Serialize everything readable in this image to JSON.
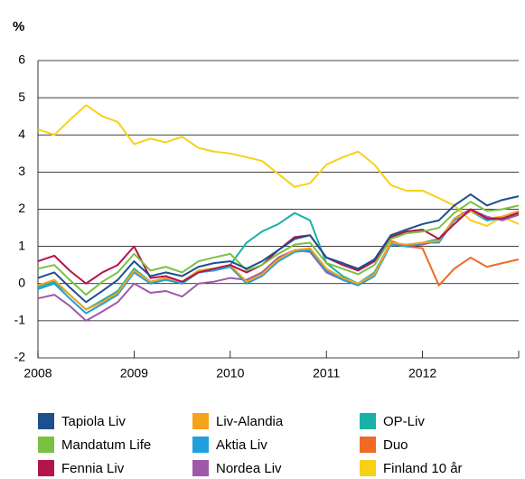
{
  "chart_data": {
    "type": "line",
    "y_label": "%",
    "x": [
      2008,
      2008.17,
      2008.33,
      2008.5,
      2008.67,
      2008.83,
      2009,
      2009.17,
      2009.33,
      2009.5,
      2009.67,
      2009.83,
      2010,
      2010.17,
      2010.33,
      2010.5,
      2010.67,
      2010.83,
      2011,
      2011.17,
      2011.33,
      2011.5,
      2011.67,
      2011.83,
      2012,
      2012.17,
      2012.33,
      2012.5,
      2012.67,
      2012.83,
      2013
    ],
    "series": [
      {
        "name": "Tapiola Liv",
        "color": "#1d4f91",
        "values": [
          0.15,
          0.3,
          -0.1,
          -0.5,
          -0.2,
          0.1,
          0.6,
          0.2,
          0.3,
          0.2,
          0.45,
          0.55,
          0.6,
          0.4,
          0.6,
          0.9,
          1.2,
          1.3,
          0.7,
          0.55,
          0.4,
          0.65,
          1.3,
          1.45,
          1.6,
          1.7,
          2.1,
          2.4,
          2.1,
          2.25,
          2.35
        ]
      },
      {
        "name": "Mandatum Life",
        "color": "#7ac143",
        "values": [
          0.4,
          0.5,
          0.1,
          -0.3,
          0.05,
          0.3,
          0.8,
          0.35,
          0.45,
          0.3,
          0.6,
          0.7,
          0.8,
          0.35,
          0.5,
          0.8,
          1.05,
          1.1,
          0.55,
          0.4,
          0.25,
          0.5,
          1.2,
          1.35,
          1.4,
          1.5,
          1.9,
          2.2,
          1.95,
          2.0,
          2.1
        ]
      },
      {
        "name": "Fennia Liv",
        "color": "#b5134b",
        "values": [
          0.6,
          0.75,
          0.35,
          0.0,
          0.3,
          0.5,
          1.0,
          0.15,
          0.2,
          0.05,
          0.3,
          0.4,
          0.5,
          0.3,
          0.5,
          0.9,
          1.25,
          1.3,
          0.7,
          0.5,
          0.35,
          0.6,
          1.25,
          1.4,
          1.45,
          1.2,
          1.6,
          2.0,
          1.75,
          1.75,
          1.9
        ]
      },
      {
        "name": "Liv-Alandia",
        "color": "#f7a21b",
        "values": [
          -0.05,
          0.1,
          -0.3,
          -0.7,
          -0.5,
          -0.25,
          0.35,
          0.05,
          0.15,
          0.05,
          0.35,
          0.4,
          0.5,
          0.05,
          0.25,
          0.65,
          0.9,
          0.95,
          0.4,
          0.15,
          0.0,
          0.25,
          1.1,
          1.05,
          1.1,
          1.15,
          1.75,
          1.95,
          1.75,
          1.8,
          1.95
        ]
      },
      {
        "name": "Aktia Liv",
        "color": "#1fa0dc",
        "values": [
          -0.15,
          0.0,
          -0.4,
          -0.8,
          -0.55,
          -0.3,
          0.3,
          0.0,
          0.1,
          0.0,
          0.3,
          0.35,
          0.45,
          0.0,
          0.2,
          0.6,
          0.85,
          0.9,
          0.35,
          0.1,
          -0.05,
          0.2,
          1.05,
          1.0,
          1.1,
          1.1,
          1.7,
          1.95,
          1.7,
          1.75,
          1.9
        ]
      },
      {
        "name": "Nordea Liv",
        "color": "#9e5aa8",
        "values": [
          -0.4,
          -0.3,
          -0.6,
          -1.0,
          -0.75,
          -0.5,
          0.0,
          -0.25,
          -0.2,
          -0.35,
          0.0,
          0.05,
          0.15,
          0.1,
          0.3,
          0.7,
          0.9,
          0.85,
          0.3,
          0.1,
          0.0,
          0.25,
          1.1,
          1.0,
          1.05,
          1.15,
          1.75,
          2.0,
          1.8,
          1.7,
          1.85
        ]
      },
      {
        "name": "OP-Liv",
        "color": "#18b3a5",
        "values": [
          -0.1,
          0.05,
          -0.3,
          -0.7,
          -0.45,
          -0.2,
          0.4,
          0.05,
          0.15,
          0.05,
          0.35,
          0.4,
          0.5,
          1.1,
          1.4,
          1.6,
          1.9,
          1.7,
          0.55,
          0.2,
          0.0,
          0.3,
          1.1,
          1.0,
          1.1,
          1.2,
          1.7,
          1.95,
          1.7,
          1.8,
          1.95
        ]
      },
      {
        "name": "Duo",
        "color": "#ef6a25",
        "values": [
          null,
          null,
          null,
          null,
          null,
          null,
          null,
          null,
          null,
          null,
          null,
          null,
          null,
          null,
          null,
          null,
          null,
          null,
          null,
          null,
          null,
          null,
          1.15,
          1.0,
          0.95,
          -0.05,
          0.4,
          0.7,
          0.45,
          0.55,
          0.65
        ]
      },
      {
        "name": "Finland 10 år",
        "color": "#f7d117",
        "values": [
          4.15,
          4.0,
          4.4,
          4.8,
          4.5,
          4.35,
          3.75,
          3.9,
          3.8,
          3.95,
          3.65,
          3.55,
          3.5,
          3.4,
          3.3,
          2.95,
          2.6,
          2.7,
          3.2,
          3.4,
          3.55,
          3.2,
          2.65,
          2.5,
          2.5,
          2.3,
          2.1,
          1.7,
          1.55,
          1.8,
          1.6
        ]
      }
    ],
    "xlim": [
      2008,
      2013
    ],
    "xticks": [
      2008,
      2009,
      2010,
      2011,
      2012
    ],
    "ylim": [
      -2,
      6
    ],
    "yticks": [
      -2,
      -1,
      0,
      1,
      2,
      3,
      4,
      5,
      6
    ],
    "grid": true
  }
}
